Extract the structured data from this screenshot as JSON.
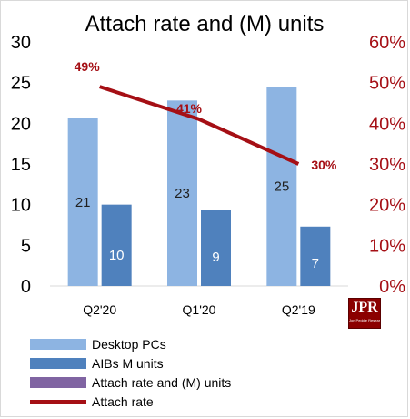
{
  "chart_data": {
    "type": "bar",
    "title": "Attach rate and (M) units",
    "categories": [
      "Q2'20",
      "Q1'20",
      "Q2'19"
    ],
    "series": [
      {
        "name": "Desktop PCs",
        "values": [
          20.6,
          22.8,
          24.5
        ],
        "labels": [
          "21",
          "23",
          "25"
        ],
        "color": "#8db4e2"
      },
      {
        "name": "AIBs M units",
        "values": [
          10,
          9.4,
          7.3
        ],
        "labels": [
          "10",
          "9",
          "7"
        ],
        "color": "#4f81bd"
      }
    ],
    "line_series": {
      "name": "Attach rate",
      "values": [
        49,
        41,
        30
      ],
      "labels": [
        "49%",
        "41%",
        "30%"
      ],
      "color": "#a50f15"
    },
    "extra_legend": {
      "name": "Attach rate and (M) units",
      "color": "#8064a2"
    },
    "ylim": [
      0,
      30
    ],
    "yticks": [
      "0",
      "5",
      "10",
      "15",
      "20",
      "25",
      "30"
    ],
    "y2lim": [
      0,
      60
    ],
    "y2ticks": [
      "0%",
      "10%",
      "20%",
      "30%",
      "40%",
      "50%",
      "60%"
    ],
    "grid": false,
    "legend_position": "bottom-left"
  },
  "logo": {
    "text": "JPR",
    "subtext": "Jon Peddie Research"
  }
}
